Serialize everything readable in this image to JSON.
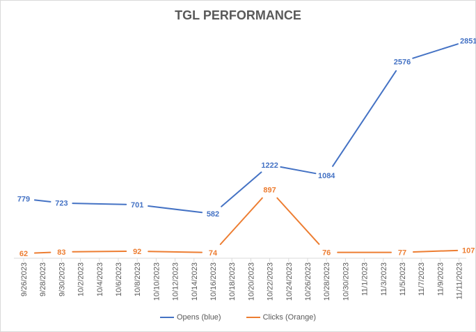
{
  "chart_data": {
    "type": "line",
    "title": "TGL PERFORMANCE",
    "xlabel": "",
    "ylabel": "",
    "ylim": [
      0,
      3000
    ],
    "grid": false,
    "legend_position": "bottom",
    "x_tick_labels": [
      "9/26/2023",
      "9/28/2023",
      "9/30/2023",
      "10/2/2023",
      "10/4/2023",
      "10/6/2023",
      "10/8/2023",
      "10/10/2023",
      "10/12/2023",
      "10/14/2023",
      "10/16/2023",
      "10/18/2023",
      "10/20/2023",
      "10/22/2023",
      "10/24/2023",
      "10/26/2023",
      "10/28/2023",
      "10/30/2023",
      "11/1/2023",
      "11/3/2023",
      "11/5/2023",
      "11/7/2023",
      "11/9/2023",
      "11/11/2023"
    ],
    "x": [
      "9/26/2023",
      "9/30/2023",
      "10/8/2023",
      "10/16/2023",
      "10/22/2023",
      "10/28/2023",
      "11/5/2023",
      "11/12/2023"
    ],
    "x_index": [
      0,
      4,
      12,
      20,
      26,
      32,
      40,
      47
    ],
    "series": [
      {
        "name": "Opens (blue)",
        "color": "#4472c4",
        "values": [
          779,
          723,
          701,
          582,
          1222,
          1084,
          2576,
          2851
        ]
      },
      {
        "name": "Clicks (Orange)",
        "color": "#ed7d31",
        "values": [
          62,
          83,
          92,
          74,
          897,
          76,
          77,
          107
        ]
      }
    ]
  }
}
